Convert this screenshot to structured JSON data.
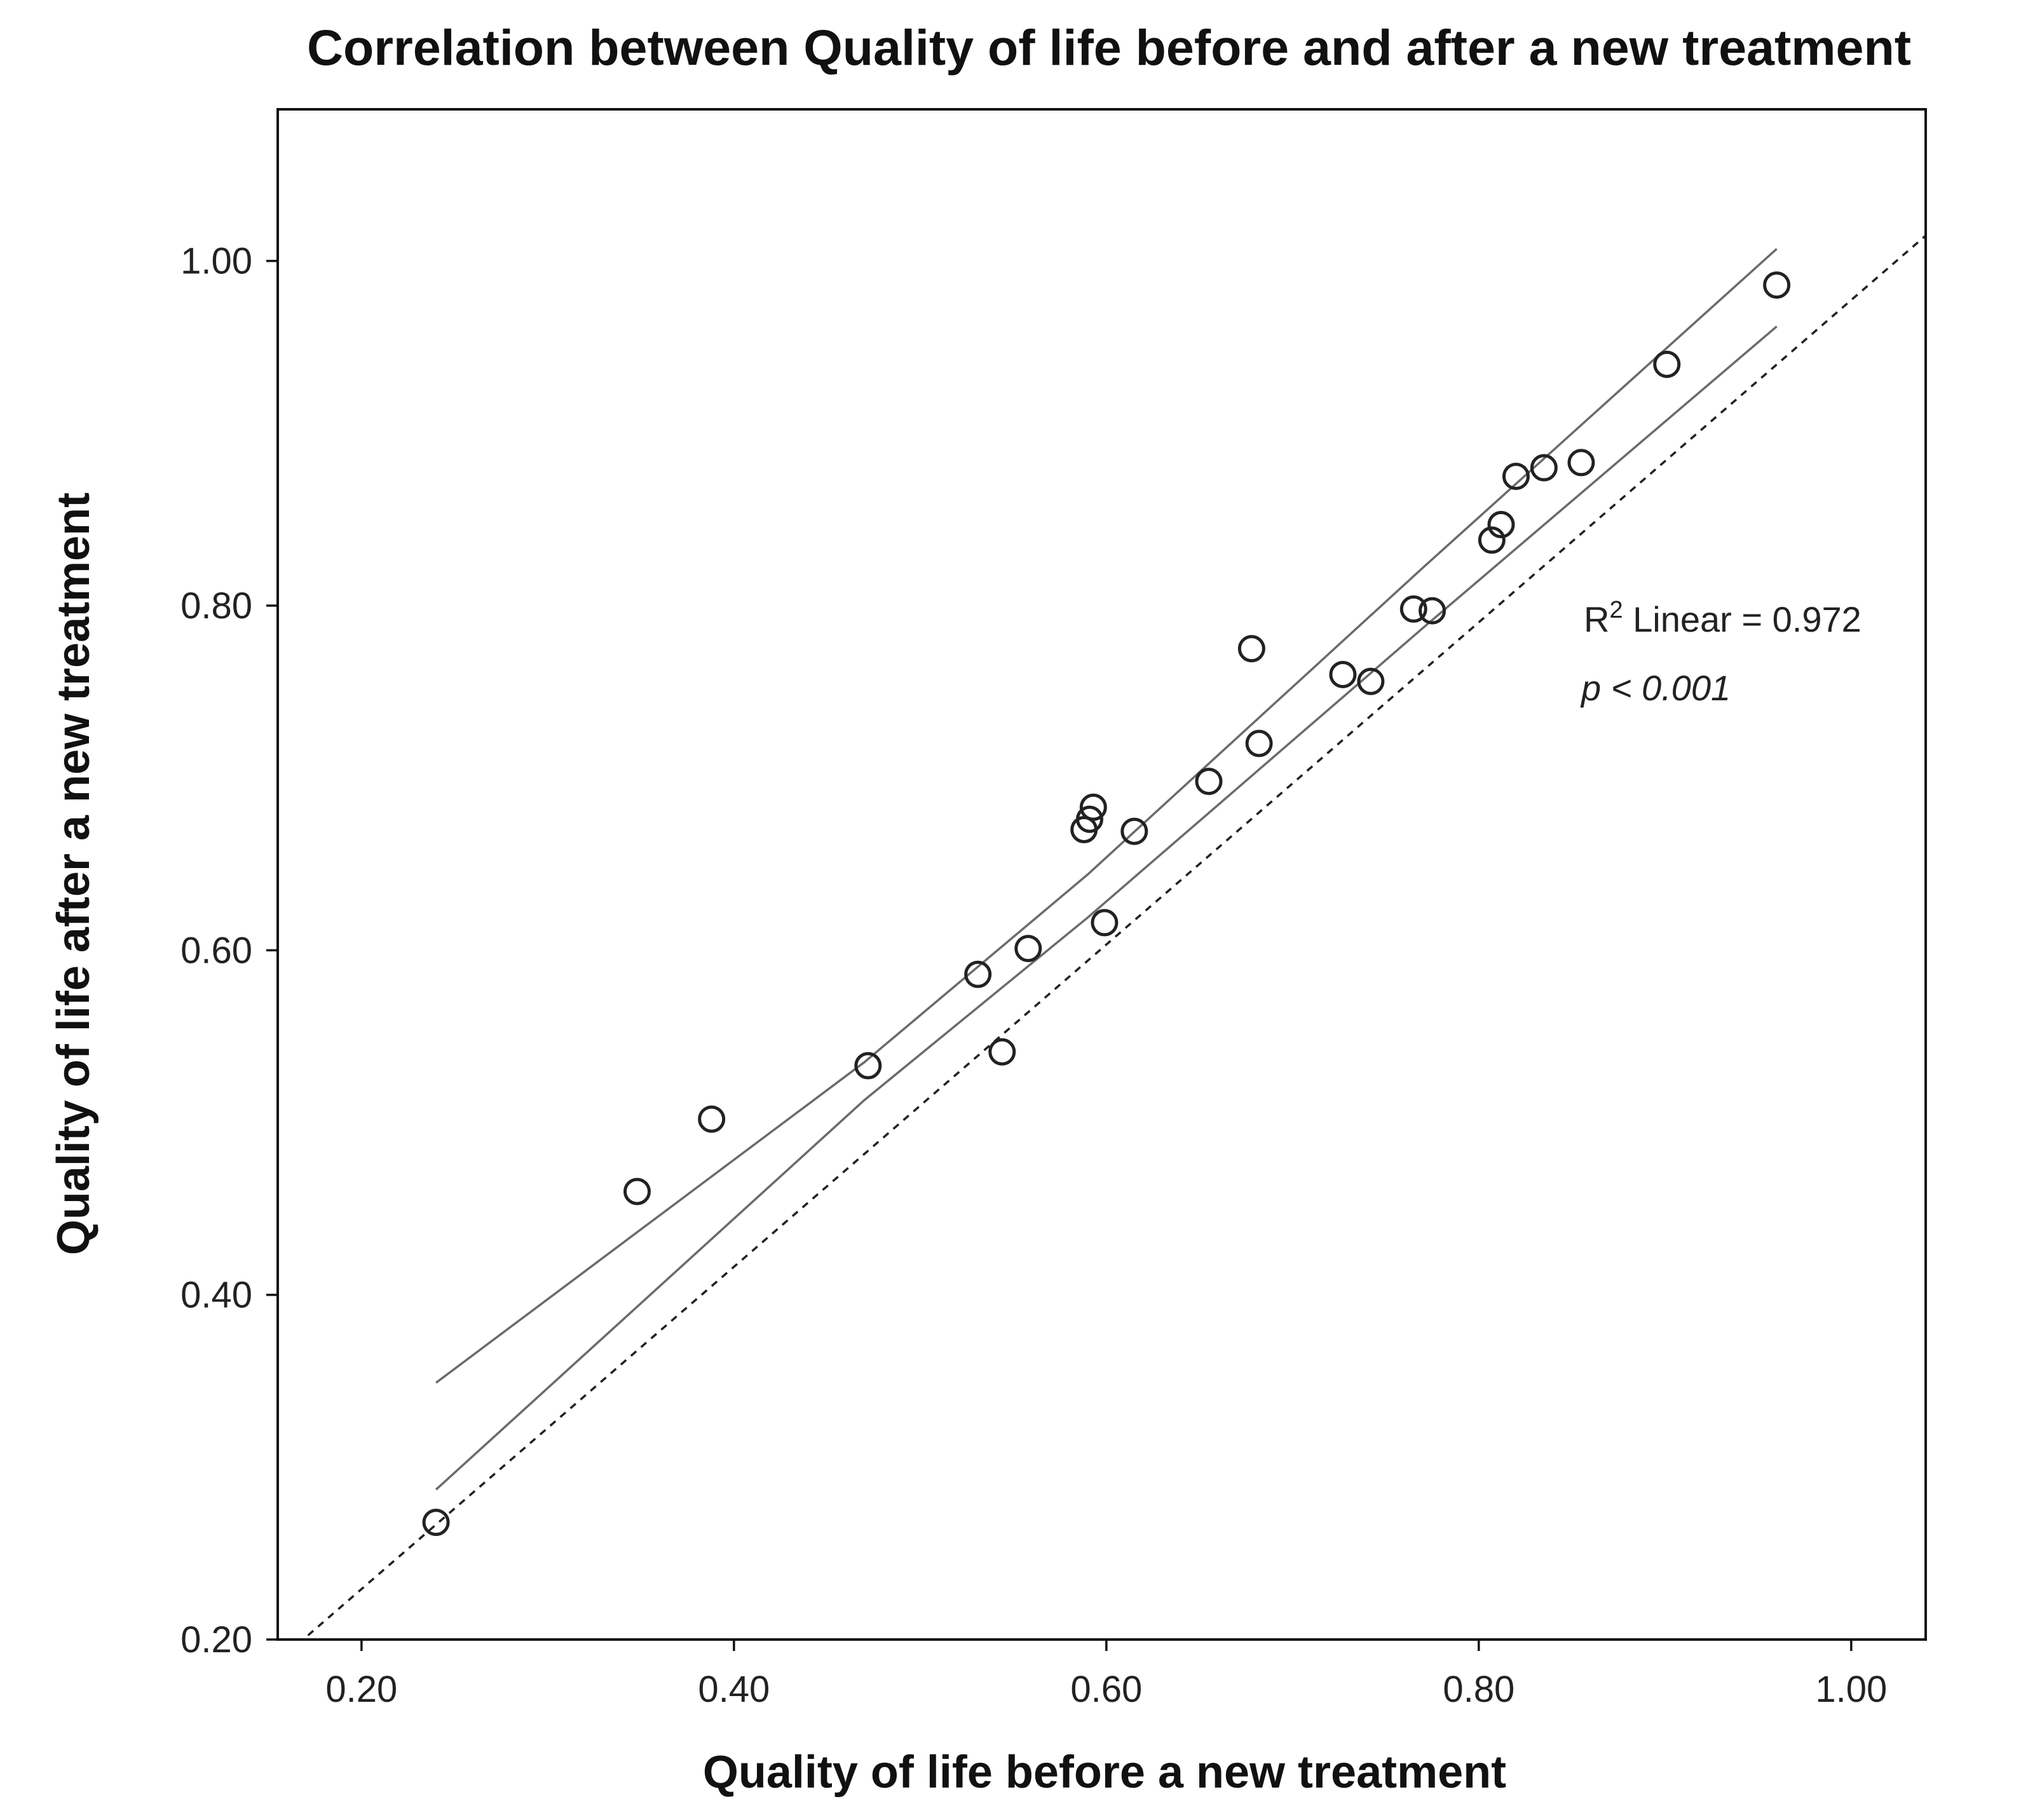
{
  "chart_data": {
    "type": "scatter",
    "title": "Correlation between Quality of life before and after a new treatment",
    "xlabel": "Quality of life before a new treatment",
    "ylabel": "Quality of life after a new treatment",
    "xlim": [
      0.155,
      1.04
    ],
    "ylim": [
      0.2,
      1.088
    ],
    "x_ticks": [
      "0.20",
      "0.40",
      "0.60",
      "0.80",
      "1.00"
    ],
    "y_ticks": [
      "0.20",
      "0.40",
      "0.60",
      "0.80",
      "1.00"
    ],
    "grid": false,
    "points": [
      {
        "x": 0.24,
        "y": 0.268
      },
      {
        "x": 0.348,
        "y": 0.46
      },
      {
        "x": 0.388,
        "y": 0.502
      },
      {
        "x": 0.472,
        "y": 0.533
      },
      {
        "x": 0.531,
        "y": 0.586
      },
      {
        "x": 0.544,
        "y": 0.541
      },
      {
        "x": 0.558,
        "y": 0.601
      },
      {
        "x": 0.588,
        "y": 0.67
      },
      {
        "x": 0.591,
        "y": 0.676
      },
      {
        "x": 0.593,
        "y": 0.683
      },
      {
        "x": 0.599,
        "y": 0.616
      },
      {
        "x": 0.615,
        "y": 0.669
      },
      {
        "x": 0.655,
        "y": 0.698
      },
      {
        "x": 0.678,
        "y": 0.775
      },
      {
        "x": 0.682,
        "y": 0.72
      },
      {
        "x": 0.727,
        "y": 0.76
      },
      {
        "x": 0.742,
        "y": 0.756
      },
      {
        "x": 0.765,
        "y": 0.798
      },
      {
        "x": 0.775,
        "y": 0.797
      },
      {
        "x": 0.807,
        "y": 0.838
      },
      {
        "x": 0.812,
        "y": 0.847
      },
      {
        "x": 0.82,
        "y": 0.875
      },
      {
        "x": 0.835,
        "y": 0.88
      },
      {
        "x": 0.855,
        "y": 0.883
      },
      {
        "x": 0.901,
        "y": 0.94
      },
      {
        "x": 0.96,
        "y": 0.986
      }
    ],
    "fit_line": {
      "x_range": [
        0.155,
        1.04
      ],
      "slope": 0.935,
      "intercept": 0.0423
    },
    "confidence_band": {
      "x": [
        0.24,
        0.47,
        0.59,
        0.77,
        0.96
      ],
      "upper": [
        0.349,
        0.535,
        0.644,
        0.822,
        1.007
      ],
      "lower": [
        0.287,
        0.513,
        0.619,
        0.787,
        0.962
      ]
    },
    "annotations": {
      "r2_prefix": "R",
      "r2_superscript": "2",
      "r2_text": " Linear = 0.972",
      "p_value": "p < 0.001"
    }
  }
}
